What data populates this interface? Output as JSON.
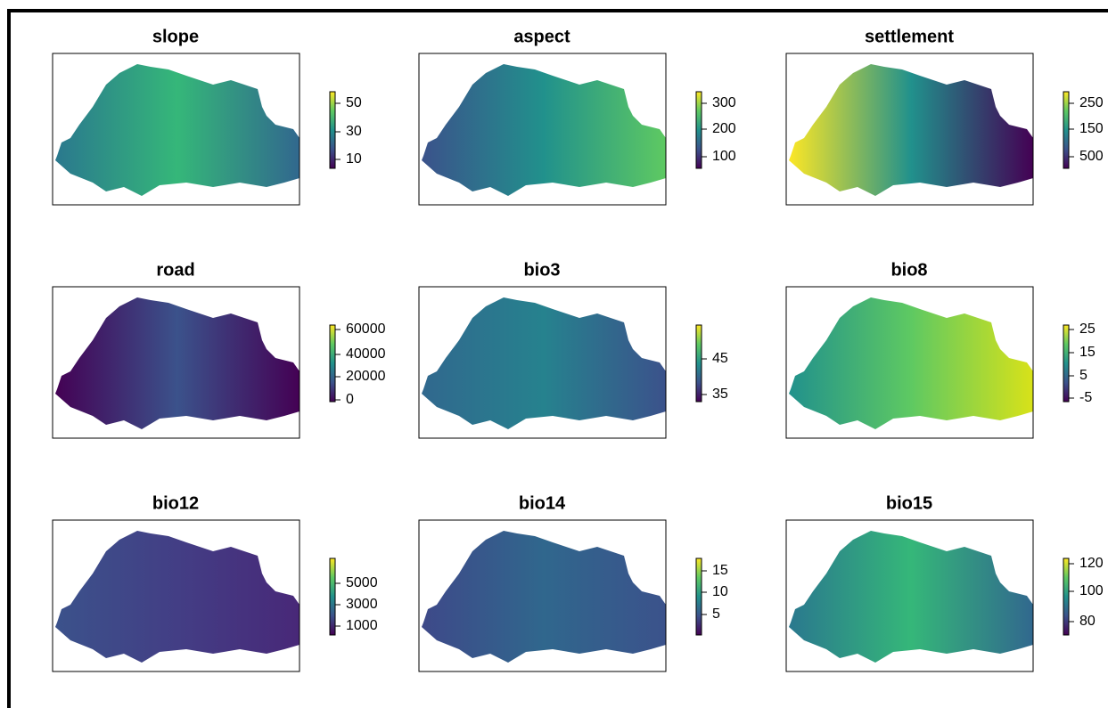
{
  "panels": [
    {
      "title": "slope",
      "legend_ticks": [
        "10",
        "30",
        "50"
      ]
    },
    {
      "title": "aspect",
      "legend_ticks": [
        "100",
        "200",
        "300"
      ]
    },
    {
      "title": "settlement",
      "legend_ticks": [
        "500",
        "150",
        "250"
      ]
    },
    {
      "title": "road",
      "legend_ticks": [
        "0",
        "20000",
        "40000",
        "60000"
      ]
    },
    {
      "title": "bio3",
      "legend_ticks": [
        "35",
        "45"
      ]
    },
    {
      "title": "bio8",
      "legend_ticks": [
        "-5",
        "5",
        "15",
        "25"
      ]
    },
    {
      "title": "bio12",
      "legend_ticks": [
        "1000",
        "3000",
        "5000"
      ]
    },
    {
      "title": "bio14",
      "legend_ticks": [
        "5",
        "10",
        "15"
      ]
    },
    {
      "title": "bio15",
      "legend_ticks": [
        "80",
        "100",
        "120"
      ]
    }
  ]
}
